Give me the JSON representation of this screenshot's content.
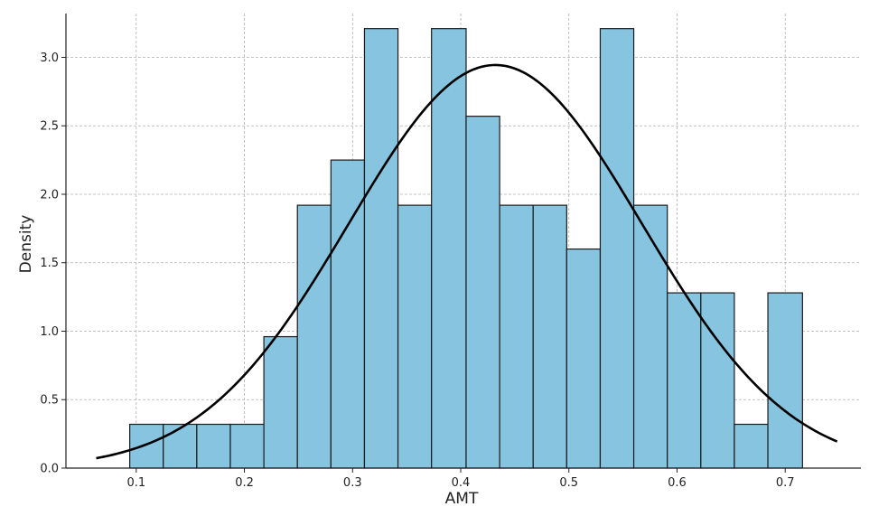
{
  "chart_data": {
    "type": "bar",
    "subtype": "histogram-with-normal-fit",
    "title": "",
    "xlabel": "AMT",
    "ylabel": "Density",
    "xlim": [
      0.035,
      0.77
    ],
    "ylim": [
      0,
      3.32
    ],
    "x_ticks": [
      0.1,
      0.2,
      0.3,
      0.4,
      0.5,
      0.6,
      0.7
    ],
    "x_tick_labels": [
      "0.1",
      "0.2",
      "0.3",
      "0.4",
      "0.5",
      "0.6",
      "0.7"
    ],
    "y_ticks": [
      0.0,
      0.5,
      1.0,
      1.5,
      2.0,
      2.5,
      3.0
    ],
    "y_tick_labels": [
      "0.0",
      "0.5",
      "1.0",
      "1.5",
      "2.0",
      "2.5",
      "3.0"
    ],
    "grid": true,
    "bin_edges": [
      0.094,
      0.125,
      0.156,
      0.187,
      0.218,
      0.249,
      0.28,
      0.311,
      0.342,
      0.373,
      0.405,
      0.436,
      0.467,
      0.498,
      0.529,
      0.56,
      0.591,
      0.622,
      0.653,
      0.684,
      0.716
    ],
    "densities": [
      0.32,
      0.32,
      0.32,
      0.32,
      0.96,
      1.92,
      2.25,
      3.21,
      1.92,
      3.21,
      2.57,
      1.92,
      1.92,
      1.6,
      3.21,
      1.92,
      1.28,
      1.28,
      0.32,
      1.28
    ],
    "normal_fit": {
      "mean": 0.432,
      "std": 0.1355,
      "x_range": [
        0.063,
        0.748
      ]
    },
    "bar_color": "#87c4e0",
    "bar_edge_color": "#1a1a1a",
    "line_color": "#000000"
  }
}
